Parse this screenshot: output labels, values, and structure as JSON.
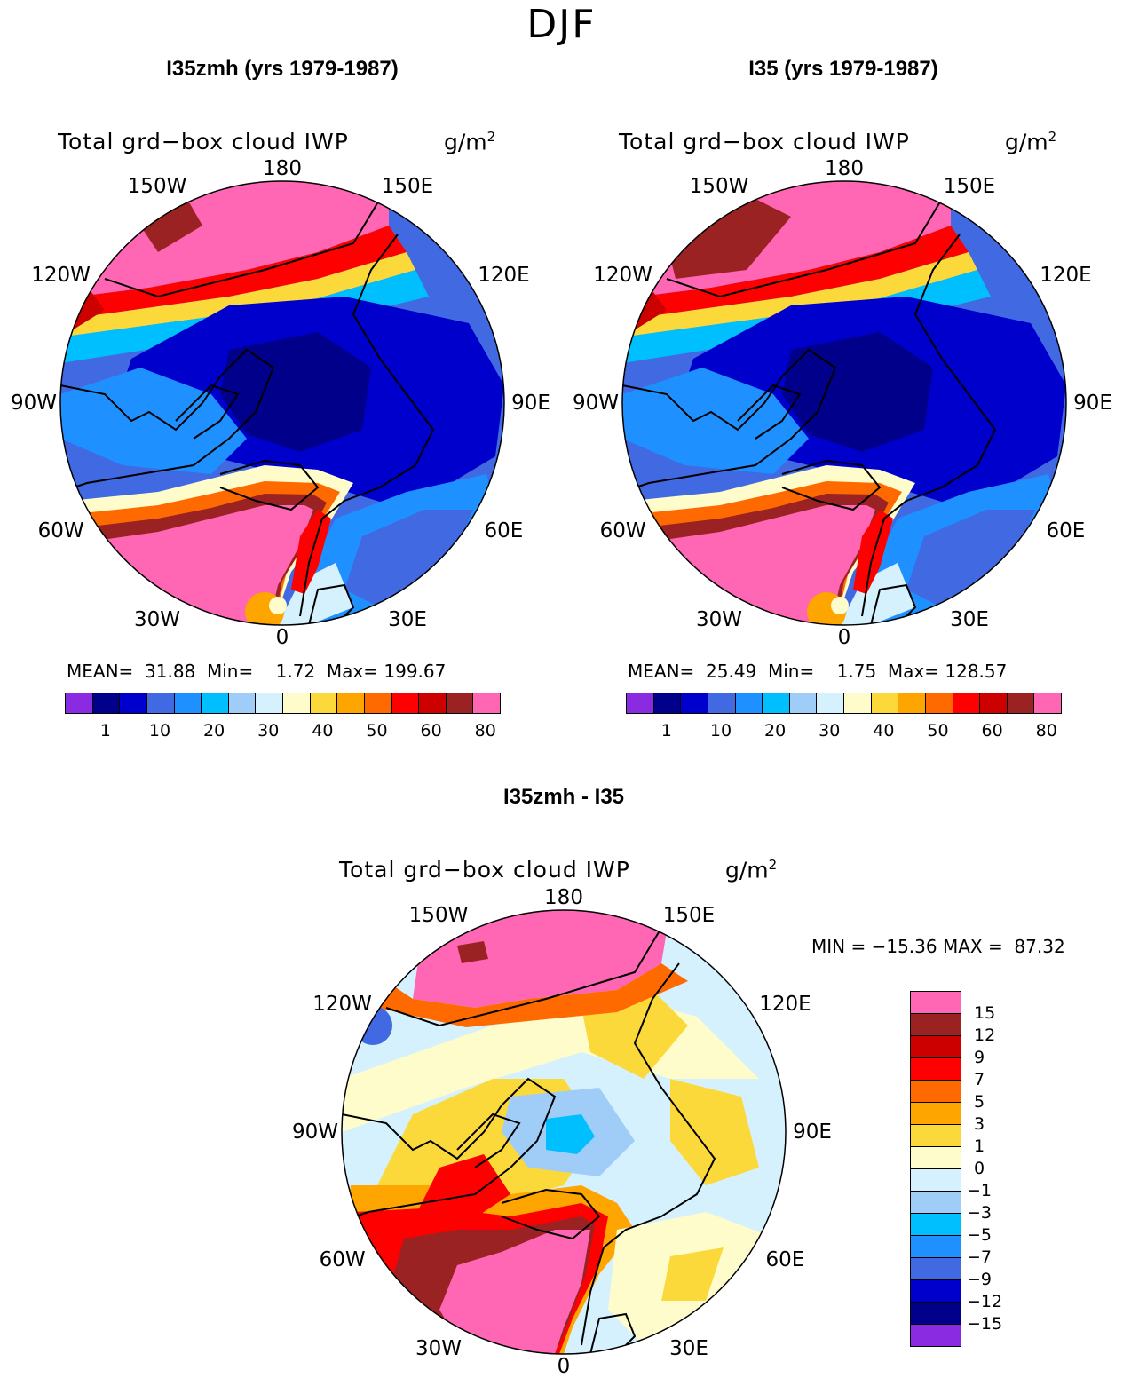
{
  "season": "DJF",
  "panels": [
    {
      "title": "I35zmh (yrs 1979-1987)",
      "variable": "Total grd−box cloud IWP",
      "units_base": "g/m",
      "units_sup": "2",
      "stats": "MEAN=  31.88  Min=    1.72  Max= 199.67"
    },
    {
      "title": "I35 (yrs 1979-1987)",
      "variable": "Total grd−box cloud IWP",
      "units_base": "g/m",
      "units_sup": "2",
      "stats": "MEAN=  25.49  Min=    1.75  Max= 128.57"
    },
    {
      "title": "I35zmh - I35",
      "variable": "Total grd−box cloud IWP",
      "units_base": "g/m",
      "units_sup": "2",
      "stats": "MIN = −15.36 MAX =  87.32"
    }
  ],
  "longitude_labels": [
    "180",
    "150E",
    "120E",
    "90E",
    "60E",
    "30E",
    "0",
    "30W",
    "60W",
    "90W",
    "120W",
    "150W"
  ],
  "colorbar_abs": {
    "colors": [
      "#8a2be2",
      "#00008b",
      "#0000cd",
      "#4169e1",
      "#1e90ff",
      "#00bfff",
      "#a0cdf8",
      "#d5f1fd",
      "#fffccc",
      "#fcd93a",
      "#ffa500",
      "#ff6a00",
      "#ff0000",
      "#cd0000",
      "#9b2222",
      "#ff66b4"
    ],
    "tick_labels": [
      "1",
      "10",
      "20",
      "30",
      "40",
      "50",
      "60",
      "80"
    ]
  },
  "colorbar_diff": {
    "colors": [
      "#ff66b4",
      "#9b2222",
      "#cd0000",
      "#ff0000",
      "#ff6a00",
      "#ffa500",
      "#fcd93a",
      "#fffccc",
      "#d5f1fd",
      "#a0cdf8",
      "#00bfff",
      "#1e90ff",
      "#4169e1",
      "#0000cd",
      "#00008b",
      "#8a2be2"
    ],
    "tick_labels": [
      "15",
      "12",
      "9",
      "7",
      "5",
      "3",
      "1",
      "0",
      "−1",
      "−3",
      "−5",
      "−7",
      "−9",
      "−12",
      "−15"
    ]
  }
}
